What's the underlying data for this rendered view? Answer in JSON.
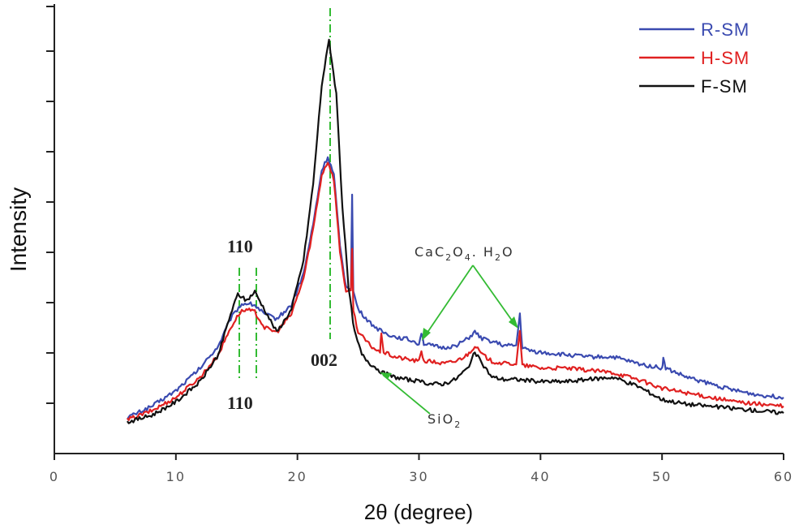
{
  "chart_data": {
    "type": "line",
    "title": "",
    "xlabel": "2θ (degree)",
    "ylabel": "Intensity",
    "xlim": [
      0,
      60
    ],
    "ylim": [
      0,
      100
    ],
    "x_ticks": [
      0,
      10,
      20,
      30,
      40,
      50,
      60
    ],
    "y_ticks_labeled": false,
    "legend_position": "top-right",
    "series": [
      {
        "name": "R-SM",
        "color": "#3a4ab0",
        "points": [
          [
            6,
            8
          ],
          [
            8,
            10.5
          ],
          [
            10,
            14
          ],
          [
            12,
            19
          ],
          [
            13.5,
            24
          ],
          [
            14.5,
            30
          ],
          [
            15.3,
            33
          ],
          [
            15.8,
            33.5
          ],
          [
            16.5,
            33
          ],
          [
            17.3,
            31
          ],
          [
            18.3,
            30
          ],
          [
            19.5,
            33
          ],
          [
            20.5,
            40
          ],
          [
            21.3,
            51
          ],
          [
            22,
            63
          ],
          [
            22.5,
            66
          ],
          [
            23,
            62
          ],
          [
            23.5,
            46
          ],
          [
            24,
            37
          ],
          [
            24.4,
            37
          ],
          [
            24.5,
            58
          ],
          [
            24.6,
            36
          ],
          [
            25,
            32
          ],
          [
            26,
            29
          ],
          [
            27,
            27
          ],
          [
            28,
            26
          ],
          [
            29,
            25.5
          ],
          [
            30,
            24.5
          ],
          [
            30.2,
            27
          ],
          [
            30.4,
            24.5
          ],
          [
            31,
            24
          ],
          [
            32,
            23.5
          ],
          [
            33,
            24
          ],
          [
            34,
            25.5
          ],
          [
            34.6,
            27
          ],
          [
            35.2,
            25.5
          ],
          [
            36,
            25
          ],
          [
            37,
            24
          ],
          [
            38,
            24
          ],
          [
            38.3,
            31
          ],
          [
            38.5,
            23.5
          ],
          [
            39,
            23
          ],
          [
            40,
            22.5
          ],
          [
            42,
            22
          ],
          [
            44,
            21.5
          ],
          [
            46,
            21.5
          ],
          [
            48,
            20
          ],
          [
            50,
            19
          ],
          [
            50.1,
            21
          ],
          [
            50.3,
            19
          ],
          [
            52,
            17
          ],
          [
            54,
            15.5
          ],
          [
            56,
            14
          ],
          [
            58,
            13
          ],
          [
            60,
            12.5
          ]
        ]
      },
      {
        "name": "H-SM",
        "color": "#e02020",
        "points": [
          [
            6,
            7.5
          ],
          [
            8,
            9.5
          ],
          [
            10,
            12.5
          ],
          [
            12,
            17
          ],
          [
            13.5,
            22
          ],
          [
            14.5,
            28
          ],
          [
            15.3,
            31.5
          ],
          [
            15.8,
            32
          ],
          [
            16.5,
            31.5
          ],
          [
            17.3,
            28
          ],
          [
            18.3,
            27
          ],
          [
            19.5,
            31
          ],
          [
            20.5,
            39
          ],
          [
            21.3,
            50
          ],
          [
            22,
            62
          ],
          [
            22.5,
            65
          ],
          [
            23,
            61
          ],
          [
            23.5,
            45
          ],
          [
            24,
            36
          ],
          [
            24.4,
            36
          ],
          [
            24.5,
            46
          ],
          [
            24.6,
            32
          ],
          [
            25,
            27
          ],
          [
            26,
            24
          ],
          [
            26.8,
            22.5
          ],
          [
            26.9,
            27
          ],
          [
            27.1,
            22.5
          ],
          [
            28,
            21.5
          ],
          [
            29,
            21
          ],
          [
            30,
            20.5
          ],
          [
            30.2,
            23
          ],
          [
            30.4,
            20.5
          ],
          [
            31,
            20.5
          ],
          [
            32,
            20
          ],
          [
            33,
            20.5
          ],
          [
            34,
            22
          ],
          [
            34.6,
            24
          ],
          [
            35.2,
            22
          ],
          [
            36,
            20.5
          ],
          [
            37,
            20
          ],
          [
            38,
            20
          ],
          [
            38.3,
            27
          ],
          [
            38.5,
            19.5
          ],
          [
            39,
            19.5
          ],
          [
            40,
            19
          ],
          [
            42,
            19
          ],
          [
            44,
            18.5
          ],
          [
            46,
            18
          ],
          [
            48,
            16.5
          ],
          [
            50,
            14.5
          ],
          [
            52,
            13.5
          ],
          [
            54,
            12.5
          ],
          [
            56,
            11.5
          ],
          [
            58,
            11
          ],
          [
            60,
            10.5
          ]
        ]
      },
      {
        "name": "F-SM",
        "color": "#111111",
        "points": [
          [
            6,
            7
          ],
          [
            8,
            8.5
          ],
          [
            10,
            11.5
          ],
          [
            12,
            16
          ],
          [
            13.5,
            22
          ],
          [
            14.5,
            31
          ],
          [
            15.1,
            35.5
          ],
          [
            15.8,
            34
          ],
          [
            16.5,
            36
          ],
          [
            17.3,
            32
          ],
          [
            18.3,
            27
          ],
          [
            19.5,
            32
          ],
          [
            20.5,
            43
          ],
          [
            21.3,
            60
          ],
          [
            22,
            82
          ],
          [
            22.6,
            92
          ],
          [
            23.2,
            80
          ],
          [
            23.7,
            55
          ],
          [
            24.2,
            37
          ],
          [
            24.7,
            27
          ],
          [
            25.3,
            22
          ],
          [
            26,
            20
          ],
          [
            27,
            18
          ],
          [
            28,
            17
          ],
          [
            29,
            16.5
          ],
          [
            30,
            16
          ],
          [
            31,
            15.5
          ],
          [
            32,
            15.5
          ],
          [
            33,
            16.5
          ],
          [
            34,
            19
          ],
          [
            34.6,
            22.5
          ],
          [
            35.2,
            20
          ],
          [
            36,
            17
          ],
          [
            37,
            16.5
          ],
          [
            38,
            16.5
          ],
          [
            40,
            16
          ],
          [
            42,
            16
          ],
          [
            44,
            16.5
          ],
          [
            46,
            17
          ],
          [
            48,
            15
          ],
          [
            50,
            12
          ],
          [
            52,
            11
          ],
          [
            54,
            10.5
          ],
          [
            56,
            10
          ],
          [
            58,
            9.5
          ],
          [
            60,
            9
          ]
        ]
      }
    ],
    "annotations": {
      "peak_110_top": "110",
      "peak_110_bottom": "110",
      "peak_002": "002",
      "sio2": {
        "base": "SiO",
        "sub": "2"
      },
      "caox": {
        "p1": "CaC",
        "s1": "2",
        "p2": "O",
        "s2": "4",
        "p3": ". H",
        "s3": "2",
        "p4": "O"
      }
    }
  }
}
